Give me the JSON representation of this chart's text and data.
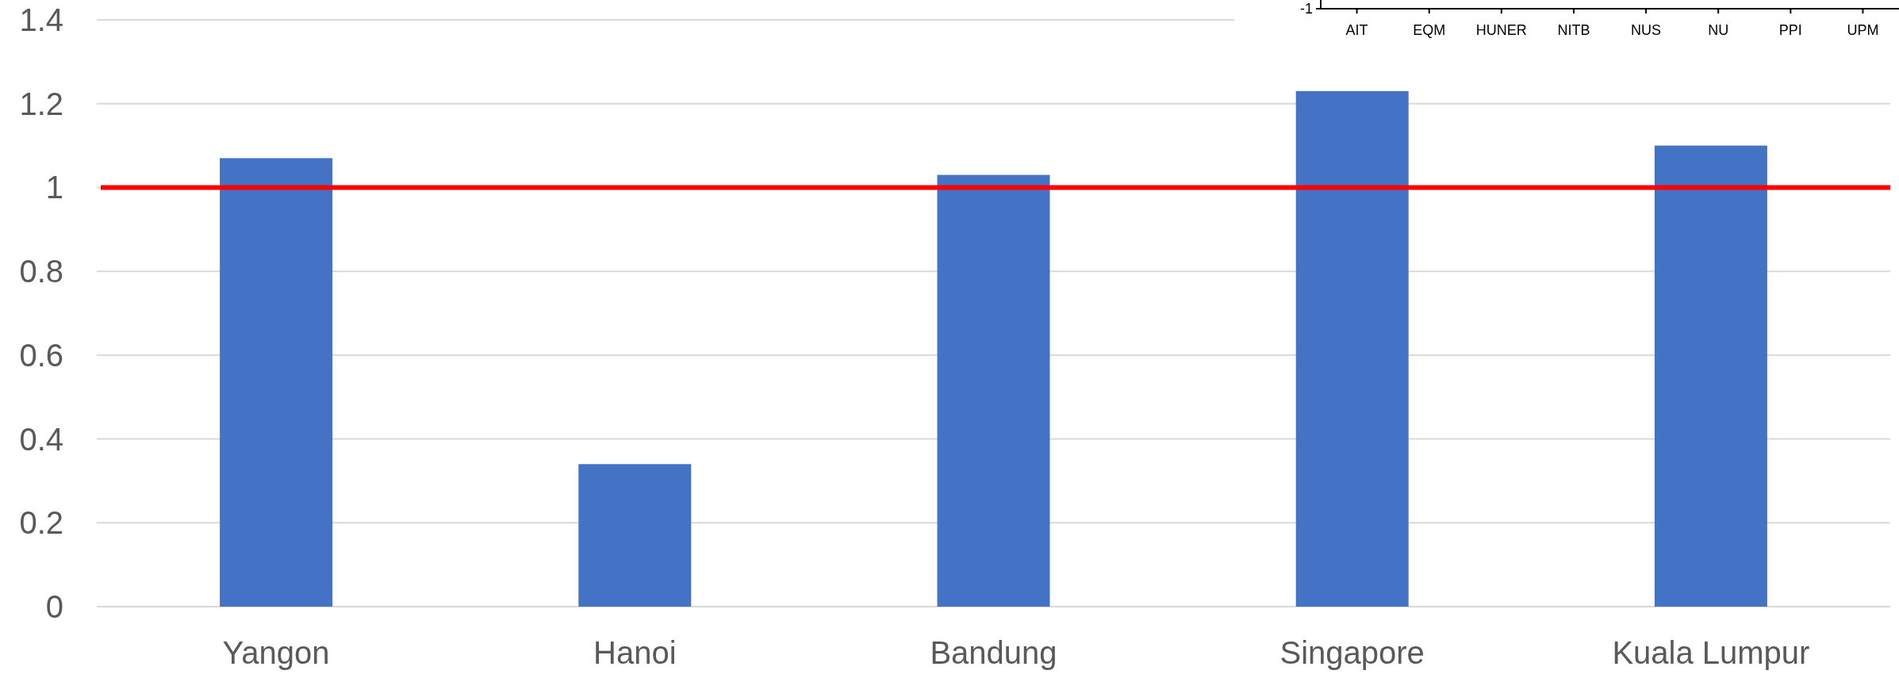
{
  "chart_data": [
    {
      "type": "bar",
      "categories": [
        "Yangon",
        "Hanoi",
        "Bandung",
        "Singapore",
        "Kuala Lumpur"
      ],
      "values": [
        1.07,
        0.34,
        1.03,
        1.23,
        1.1
      ],
      "color": "#4472c4",
      "ylim": [
        0,
        1.4
      ],
      "yticks": [
        0,
        0.2,
        0.4,
        0.6,
        0.8,
        1,
        1.2,
        1.4
      ],
      "grid": "y",
      "ref_lines": [
        {
          "axis": "y",
          "value": 1,
          "color": "#ff0000"
        }
      ]
    },
    {
      "type": "other",
      "annotations": [
        "-1",
        "AIT",
        "EQM",
        "HUNER",
        "NITB",
        "NUS",
        "NU",
        "PPI",
        "UPM"
      ]
    }
  ]
}
